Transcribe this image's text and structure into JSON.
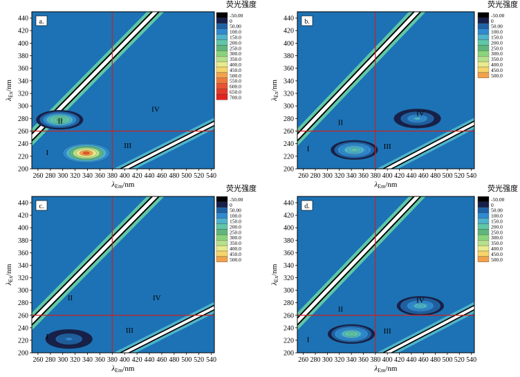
{
  "chart_data": [
    {
      "type": "heatmap",
      "panel_label": "a.",
      "legend_title": "荧光强度",
      "legend_levels": [
        "-50.00",
        "0",
        "50.00",
        "100.0",
        "150.0",
        "200.0",
        "250.0",
        "300.0",
        "350.0",
        "400.0",
        "450.0",
        "500.0",
        "550.0",
        "600.0",
        "650.0",
        "700.0"
      ],
      "xlabel": {
        "symbol": "λ",
        "sub": "Em",
        "unit": "/nm"
      },
      "ylabel": {
        "symbol": "λ",
        "sub": "Ex",
        "unit": "/nm"
      },
      "xlim": [
        250,
        545
      ],
      "ylim": [
        200,
        450
      ],
      "x_ticks": [
        260,
        280,
        300,
        320,
        340,
        360,
        380,
        400,
        420,
        440,
        460,
        480,
        500,
        520,
        540
      ],
      "y_ticks": [
        200,
        220,
        240,
        260,
        280,
        300,
        320,
        340,
        360,
        380,
        400,
        420,
        440
      ],
      "regions": [
        "I",
        "II",
        "III",
        "IV"
      ],
      "region_lines": {
        "x": 380,
        "y": 260
      },
      "peaks": [
        {
          "em": 338,
          "ex": 225,
          "level": 700
        },
        {
          "em": 295,
          "ex": 278,
          "level": 320
        }
      ]
    },
    {
      "type": "heatmap",
      "panel_label": "b.",
      "legend_title": "荧光强度",
      "legend_levels": [
        "-50.00",
        "0",
        "50.00",
        "100.0",
        "150.0",
        "200.0",
        "250.0",
        "300.0",
        "350.0",
        "400.0",
        "450.0",
        "500.0"
      ],
      "xlabel": {
        "symbol": "λ",
        "sub": "Em",
        "unit": "/nm"
      },
      "ylabel": {
        "symbol": "λ",
        "sub": "Ex",
        "unit": "/nm"
      },
      "xlim": [
        250,
        545
      ],
      "ylim": [
        200,
        450
      ],
      "x_ticks": [
        260,
        280,
        300,
        320,
        340,
        360,
        380,
        400,
        420,
        440,
        460,
        480,
        500,
        520,
        540
      ],
      "y_ticks": [
        200,
        220,
        240,
        260,
        280,
        300,
        320,
        340,
        360,
        380,
        400,
        420,
        440
      ],
      "regions": [
        "I",
        "II",
        "III",
        "IV"
      ],
      "region_lines": {
        "x": 380,
        "y": 260
      },
      "peaks": [
        {
          "em": 345,
          "ex": 230,
          "level": 260
        },
        {
          "em": 450,
          "ex": 280,
          "level": 180
        }
      ]
    },
    {
      "type": "heatmap",
      "panel_label": "c.",
      "legend_title": "荧光强度",
      "legend_levels": [
        "-50.00",
        "0",
        "50.00",
        "100.0",
        "150.0",
        "200.0",
        "250.0",
        "300.0",
        "350.0",
        "400.0",
        "450.0",
        "500.0"
      ],
      "xlabel": {
        "symbol": "λ",
        "sub": "Em",
        "unit": "/nm"
      },
      "ylabel": {
        "symbol": "λ",
        "sub": "Ex",
        "unit": "/nm"
      },
      "xlim": [
        250,
        545
      ],
      "ylim": [
        200,
        450
      ],
      "x_ticks": [
        260,
        280,
        300,
        320,
        340,
        360,
        380,
        400,
        420,
        440,
        460,
        480,
        500,
        520,
        540
      ],
      "y_ticks": [
        200,
        220,
        240,
        260,
        280,
        300,
        320,
        340,
        360,
        380,
        400,
        420,
        440
      ],
      "regions": [
        "I",
        "II",
        "III",
        "IV"
      ],
      "region_lines": {
        "x": 380,
        "y": 260
      },
      "peaks": [
        {
          "em": 310,
          "ex": 222,
          "level": 120
        }
      ]
    },
    {
      "type": "heatmap",
      "panel_label": "d.",
      "legend_title": "荧光强度",
      "legend_levels": [
        "-50.00",
        "0",
        "50.00",
        "100.0",
        "150.0",
        "200.0",
        "250.0",
        "300.0",
        "350.0",
        "400.0",
        "450.0",
        "500.0"
      ],
      "xlabel": {
        "symbol": "λ",
        "sub": "Em",
        "unit": "/nm"
      },
      "ylabel": {
        "symbol": "λ",
        "sub": "Ex",
        "unit": "/nm"
      },
      "xlim": [
        250,
        545
      ],
      "ylim": [
        200,
        450
      ],
      "x_ticks": [
        260,
        280,
        300,
        320,
        340,
        360,
        380,
        400,
        420,
        440,
        460,
        480,
        500,
        520,
        540
      ],
      "y_ticks": [
        200,
        220,
        240,
        260,
        280,
        300,
        320,
        340,
        360,
        380,
        400,
        420,
        440
      ],
      "regions": [
        "I",
        "II",
        "III",
        "IV"
      ],
      "region_lines": {
        "x": 380,
        "y": 260
      },
      "peaks": [
        {
          "em": 340,
          "ex": 230,
          "level": 280
        },
        {
          "em": 455,
          "ex": 275,
          "level": 200
        }
      ]
    }
  ],
  "colors": {
    "background_level": "#1c72b4",
    "band_white": "#ffffff",
    "band_black": "#000000",
    "region_line": "#cc2222",
    "scale": [
      "#000000",
      "#17204a",
      "#1f62a4",
      "#2f8ad0",
      "#4fb3c9",
      "#5fc7a7",
      "#5fb57e",
      "#8ad37a",
      "#b5e08c",
      "#e8ea8c",
      "#f7d469",
      "#f1a24b",
      "#ec7a3c",
      "#e75332",
      "#e33a2b",
      "#e32222"
    ]
  }
}
